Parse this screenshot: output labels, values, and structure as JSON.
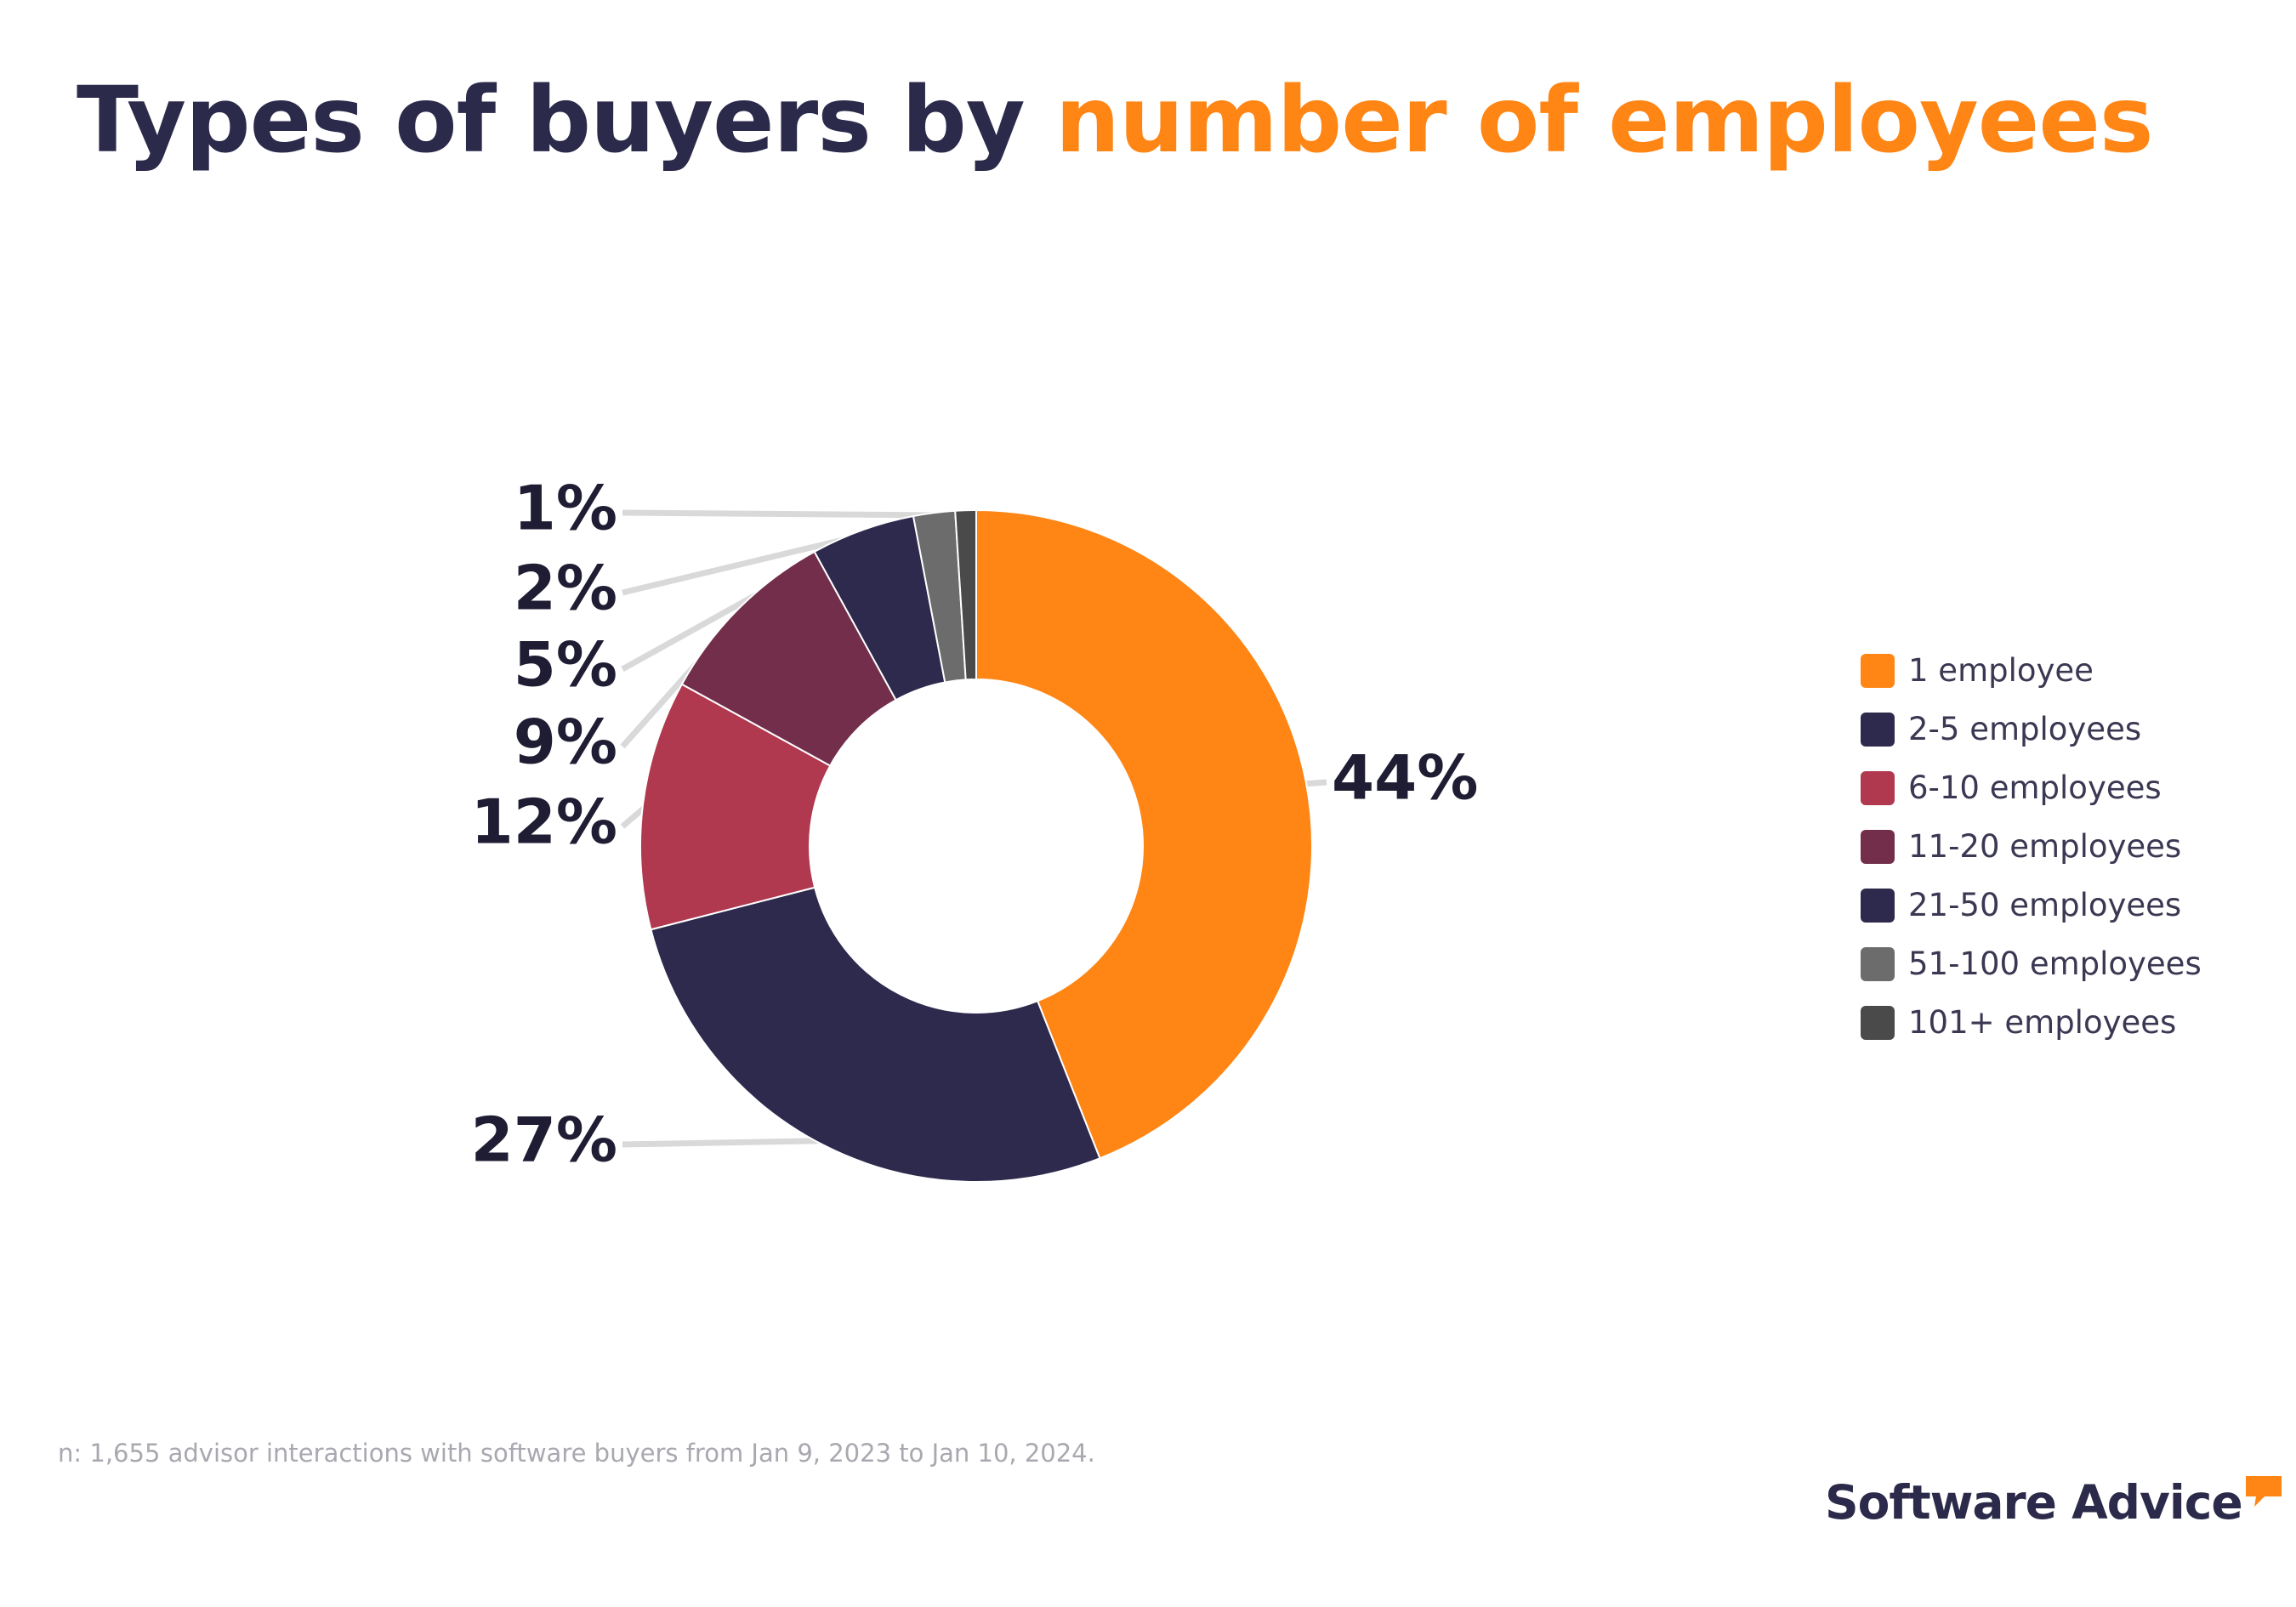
{
  "title": {
    "part1": "Types of buyers by ",
    "part2": "number of employees",
    "color1": "#2c2a4a",
    "color2": "#ff8514"
  },
  "chart_data": {
    "type": "pie",
    "style": "donut",
    "title": "Types of buyers by number of employees",
    "categories": [
      "1 employee",
      "2-5 employees",
      "6-10 employees",
      "11-20 employees",
      "21-50 employees",
      "51-100 employees",
      "101+ employees"
    ],
    "values": [
      44,
      27,
      12,
      9,
      5,
      2,
      1
    ],
    "labels": [
      "44%",
      "27%",
      "12%",
      "9%",
      "5%",
      "2%",
      "1%"
    ],
    "colors": [
      "#ff8514",
      "#2e2a4d",
      "#b0384f",
      "#722e4b",
      "#2e2a4d",
      "#6c6c6c",
      "#4a4a4a"
    ],
    "legend_position": "right"
  },
  "legend": {
    "items": [
      {
        "label": "1 employee",
        "color": "#ff8514"
      },
      {
        "label": "2-5 employees",
        "color": "#2e2a4d"
      },
      {
        "label": "6-10 employees",
        "color": "#b0384f"
      },
      {
        "label": "11-20 employees",
        "color": "#722e4b"
      },
      {
        "label": "21-50 employees",
        "color": "#2e2a4d"
      },
      {
        "label": "51-100 employees",
        "color": "#6c6c6c"
      },
      {
        "label": "101+ employees",
        "color": "#4a4a4a"
      }
    ]
  },
  "footnote": "n: 1,655 advisor interactions with software buyers from Jan 9, 2023 to Jan 10, 2024.",
  "brand": {
    "name": "Software Advice",
    "color": "#2c2a4a",
    "accent": "#ff8514"
  }
}
